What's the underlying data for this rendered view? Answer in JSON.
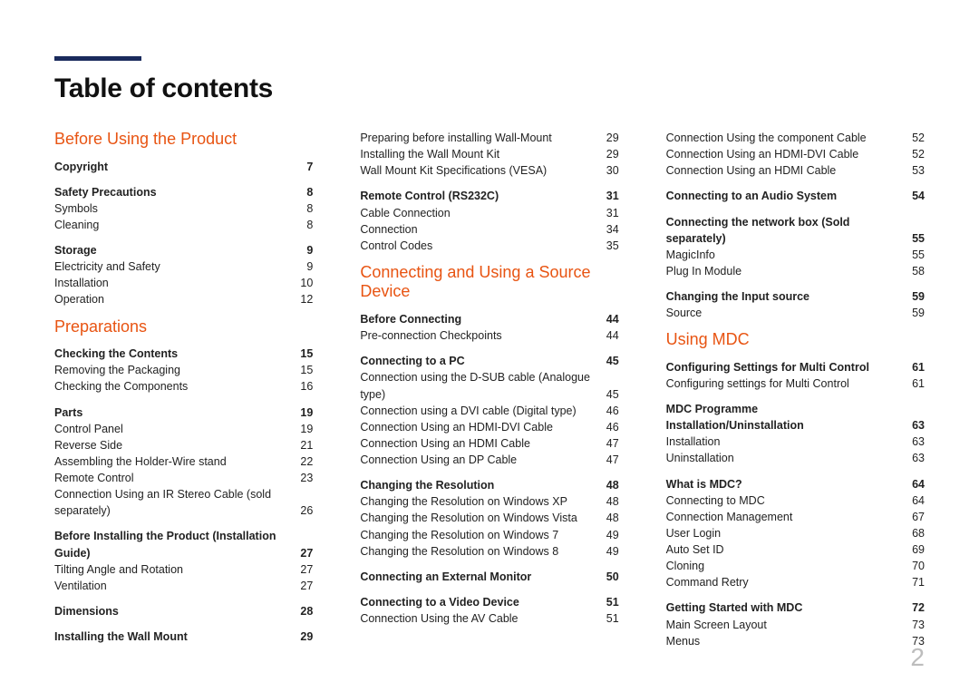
{
  "title": "Table of contents",
  "page_number": "2",
  "colors": {
    "accent_bar": "#1a2a5c",
    "heading": "#e85412",
    "text": "#222222",
    "pagenum": "#bdbdbd"
  },
  "columns": [
    {
      "sections": [
        {
          "heading": "Before Using the Product",
          "groups": [
            {
              "rows": [
                {
                  "label": "Copyright",
                  "page": "7",
                  "bold": true
                }
              ]
            },
            {
              "rows": [
                {
                  "label": "Safety Precautions",
                  "page": "8",
                  "bold": true
                },
                {
                  "label": "Symbols",
                  "page": "8"
                },
                {
                  "label": "Cleaning",
                  "page": "8"
                }
              ]
            },
            {
              "rows": [
                {
                  "label": "Storage",
                  "page": "9",
                  "bold": true
                },
                {
                  "label": "Electricity and Safety",
                  "page": "9"
                },
                {
                  "label": "Installation",
                  "page": "10"
                },
                {
                  "label": "Operation",
                  "page": "12"
                }
              ]
            }
          ]
        },
        {
          "heading": "Preparations",
          "groups": [
            {
              "rows": [
                {
                  "label": "Checking the Contents",
                  "page": "15",
                  "bold": true
                },
                {
                  "label": "Removing the Packaging",
                  "page": "15"
                },
                {
                  "label": "Checking the Components",
                  "page": "16"
                }
              ]
            },
            {
              "rows": [
                {
                  "label": "Parts",
                  "page": "19",
                  "bold": true
                },
                {
                  "label": "Control Panel",
                  "page": "19"
                },
                {
                  "label": "Reverse Side",
                  "page": "21"
                },
                {
                  "label": "Assembling the Holder-Wire stand",
                  "page": "22"
                },
                {
                  "label": "Remote Control",
                  "page": "23"
                },
                {
                  "label": "Connection Using an IR Stereo Cable (sold separately)",
                  "page": "26"
                }
              ]
            },
            {
              "rows": [
                {
                  "label": "Before Installing the Product (Installation Guide)",
                  "page": "27",
                  "bold": true
                },
                {
                  "label": "Tilting Angle and Rotation",
                  "page": "27"
                },
                {
                  "label": "Ventilation",
                  "page": "27"
                }
              ]
            },
            {
              "rows": [
                {
                  "label": "Dimensions",
                  "page": "28",
                  "bold": true
                }
              ]
            },
            {
              "rows": [
                {
                  "label": "Installing the Wall Mount",
                  "page": "29",
                  "bold": true
                }
              ]
            }
          ]
        }
      ]
    },
    {
      "sections": [
        {
          "heading": null,
          "groups": [
            {
              "rows": [
                {
                  "label": "Preparing before installing Wall-Mount",
                  "page": "29"
                },
                {
                  "label": "Installing the Wall Mount Kit",
                  "page": "29"
                },
                {
                  "label": "Wall Mount Kit Specifications (VESA)",
                  "page": "30"
                }
              ]
            },
            {
              "rows": [
                {
                  "label": "Remote Control (RS232C)",
                  "page": "31",
                  "bold": true
                },
                {
                  "label": "Cable Connection",
                  "page": "31"
                },
                {
                  "label": "Connection",
                  "page": "34"
                },
                {
                  "label": "Control Codes",
                  "page": "35"
                }
              ]
            }
          ]
        },
        {
          "heading": "Connecting and Using a Source Device",
          "groups": [
            {
              "rows": [
                {
                  "label": "Before Connecting",
                  "page": "44",
                  "bold": true
                },
                {
                  "label": "Pre-connection Checkpoints",
                  "page": "44"
                }
              ]
            },
            {
              "rows": [
                {
                  "label": "Connecting to a PC",
                  "page": "45",
                  "bold": true
                },
                {
                  "label": "Connection using the D-SUB cable (Analogue type)",
                  "page": "45"
                },
                {
                  "label": "Connection using a DVI cable (Digital type)",
                  "page": "46"
                },
                {
                  "label": "Connection Using an HDMI-DVI Cable",
                  "page": "46"
                },
                {
                  "label": "Connection Using an HDMI Cable",
                  "page": "47"
                },
                {
                  "label": "Connection Using an DP Cable",
                  "page": "47"
                }
              ]
            },
            {
              "rows": [
                {
                  "label": "Changing the Resolution",
                  "page": "48",
                  "bold": true
                },
                {
                  "label": "Changing the Resolution on Windows XP",
                  "page": "48"
                },
                {
                  "label": "Changing the Resolution on Windows Vista",
                  "page": "48"
                },
                {
                  "label": "Changing the Resolution on Windows 7",
                  "page": "49"
                },
                {
                  "label": "Changing the Resolution on Windows 8",
                  "page": "49"
                }
              ]
            },
            {
              "rows": [
                {
                  "label": "Connecting an External Monitor",
                  "page": "50",
                  "bold": true
                }
              ]
            },
            {
              "rows": [
                {
                  "label": "Connecting to a Video Device",
                  "page": "51",
                  "bold": true
                },
                {
                  "label": "Connection Using the AV Cable",
                  "page": "51"
                }
              ]
            }
          ]
        }
      ]
    },
    {
      "sections": [
        {
          "heading": null,
          "groups": [
            {
              "rows": [
                {
                  "label": "Connection Using the component Cable",
                  "page": "52"
                },
                {
                  "label": "Connection Using an HDMI-DVI Cable",
                  "page": "52"
                },
                {
                  "label": "Connection Using an HDMI Cable",
                  "page": "53"
                }
              ]
            },
            {
              "rows": [
                {
                  "label": "Connecting to an Audio System",
                  "page": "54",
                  "bold": true
                }
              ]
            },
            {
              "rows": [
                {
                  "label": "Connecting the network box (Sold separately)",
                  "page": "55",
                  "bold": true
                },
                {
                  "label": "MagicInfo",
                  "page": "55"
                },
                {
                  "label": "Plug In Module",
                  "page": "58"
                }
              ]
            },
            {
              "rows": [
                {
                  "label": "Changing the Input source",
                  "page": "59",
                  "bold": true
                },
                {
                  "label": "Source",
                  "page": "59"
                }
              ]
            }
          ]
        },
        {
          "heading": "Using MDC",
          "groups": [
            {
              "rows": [
                {
                  "label": "Configuring Settings for Multi Control",
                  "page": "61",
                  "bold": true
                },
                {
                  "label": "Configuring settings for Multi Control",
                  "page": "61"
                }
              ]
            },
            {
              "rows": [
                {
                  "label": "MDC Programme Installation/Uninstallation",
                  "page": "63",
                  "bold": true
                },
                {
                  "label": "Installation",
                  "page": "63"
                },
                {
                  "label": "Uninstallation",
                  "page": "63"
                }
              ]
            },
            {
              "rows": [
                {
                  "label": "What is MDC?",
                  "page": "64",
                  "bold": true
                },
                {
                  "label": "Connecting to MDC",
                  "page": "64"
                },
                {
                  "label": "Connection Management",
                  "page": "67"
                },
                {
                  "label": "User Login",
                  "page": "68"
                },
                {
                  "label": "Auto Set ID",
                  "page": "69"
                },
                {
                  "label": "Cloning",
                  "page": "70"
                },
                {
                  "label": "Command Retry",
                  "page": "71"
                }
              ]
            },
            {
              "rows": [
                {
                  "label": "Getting Started with MDC",
                  "page": "72",
                  "bold": true
                },
                {
                  "label": "Main Screen Layout",
                  "page": "73"
                },
                {
                  "label": "Menus",
                  "page": "73"
                }
              ]
            }
          ]
        }
      ]
    }
  ]
}
